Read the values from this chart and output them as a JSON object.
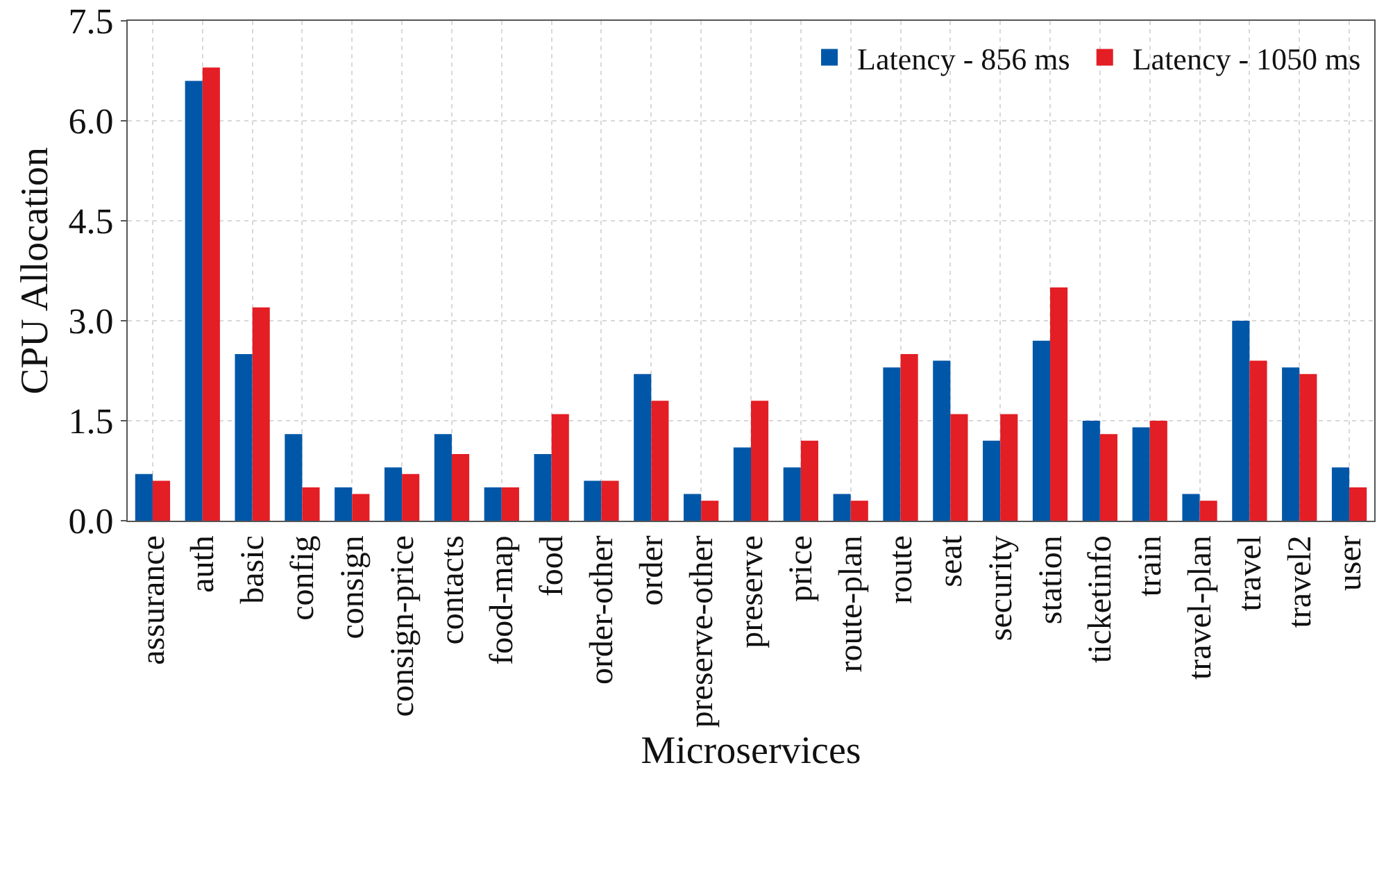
{
  "chart_data": {
    "type": "bar",
    "xlabel": "Microservices",
    "ylabel": "CPU Allocation",
    "categories": [
      "assurance",
      "auth",
      "basic",
      "config",
      "consign",
      "consign-price",
      "contacts",
      "food-map",
      "food",
      "order-other",
      "order",
      "preserve-other",
      "preserve",
      "price",
      "route-plan",
      "route",
      "seat",
      "security",
      "station",
      "ticketinfo",
      "train",
      "travel-plan",
      "travel",
      "travel2",
      "user"
    ],
    "series": [
      {
        "name": "Latency - 856 ms",
        "color": "#0057a8",
        "values": [
          0.7,
          6.6,
          2.5,
          1.3,
          0.5,
          0.8,
          1.3,
          0.5,
          1.0,
          0.6,
          2.2,
          0.4,
          1.1,
          0.8,
          0.4,
          2.3,
          2.4,
          1.2,
          2.7,
          1.5,
          1.4,
          0.4,
          3.0,
          2.3,
          0.8
        ]
      },
      {
        "name": "Latency - 1050 ms",
        "color": "#e31e24",
        "values": [
          0.6,
          6.8,
          3.2,
          0.5,
          0.4,
          0.7,
          1.0,
          0.5,
          1.6,
          0.6,
          1.8,
          0.3,
          1.8,
          1.2,
          0.3,
          2.5,
          1.6,
          1.6,
          3.5,
          1.3,
          1.5,
          0.3,
          2.4,
          2.2,
          0.5
        ]
      }
    ],
    "ylim": [
      0,
      7.5
    ],
    "yticks": [
      {
        "value": 0,
        "label": "0.0"
      },
      {
        "value": 1.5,
        "label": "1.5"
      },
      {
        "value": 3,
        "label": "3.0"
      },
      {
        "value": 4.5,
        "label": "4.5"
      },
      {
        "value": 6,
        "label": "6.0"
      },
      {
        "value": 7.5,
        "label": "7.5"
      }
    ],
    "grid": true,
    "legend": "top right"
  }
}
